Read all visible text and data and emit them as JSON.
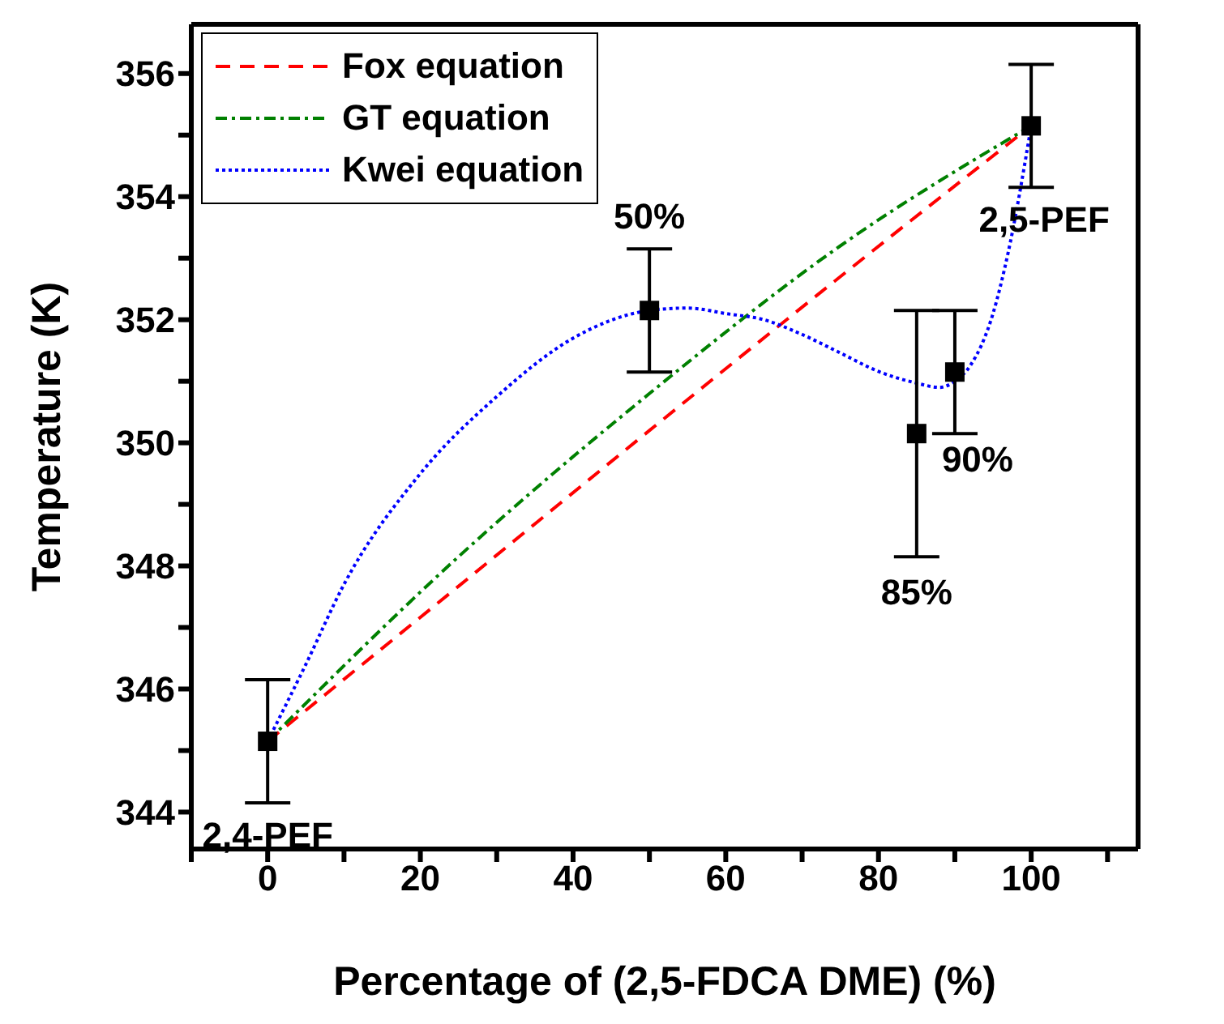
{
  "chart_data": {
    "type": "line",
    "xlabel": "Percentage of (2,5-FDCA DME) (%)",
    "ylabel": "Temperature (K)",
    "xlim": [
      -10,
      114
    ],
    "xticks": [
      {
        "value": -10,
        "label": null
      },
      0,
      {
        "value": 10,
        "label": null
      },
      20,
      {
        "value": 30,
        "label": null
      },
      40,
      {
        "value": 50,
        "label": null
      },
      60,
      {
        "value": 70,
        "label": null
      },
      80,
      {
        "value": 90,
        "label": null
      },
      100,
      {
        "value": 110,
        "label": null
      }
    ],
    "ylim": [
      343.4,
      356.8
    ],
    "yticks": [
      344,
      {
        "value": 345,
        "label": null
      },
      346,
      {
        "value": 347,
        "label": null
      },
      348,
      {
        "value": 349,
        "label": null
      },
      350,
      {
        "value": 351,
        "label": null
      },
      352,
      {
        "value": 353,
        "label": null
      },
      354,
      {
        "value": 355,
        "label": null
      },
      356
    ],
    "legend": "top left",
    "series": [
      {
        "name": "Fox equation",
        "type": "line",
        "color": "#ff0000",
        "line_style": "dashed",
        "marker": "none",
        "x": [
          0,
          25,
          50,
          75,
          100
        ],
        "values": [
          345.15,
          347.67,
          350.2,
          352.7,
          355.15
        ]
      },
      {
        "name": "GT equation",
        "type": "line",
        "color": "#008000",
        "line_style": "dashdot",
        "marker": "none",
        "x": [
          0,
          25,
          50,
          75,
          100
        ],
        "values": [
          345.15,
          348.15,
          350.8,
          353.2,
          355.15
        ]
      },
      {
        "name": "Kwei equation",
        "type": "line",
        "color": "#0000ff",
        "line_style": "dotted",
        "marker": "none",
        "x": [
          0,
          5,
          10,
          20,
          30,
          40,
          50,
          55,
          60,
          65,
          70,
          75,
          80,
          85,
          88,
          90,
          92,
          95,
          97,
          100
        ],
        "values": [
          345.15,
          346.4,
          347.7,
          349.5,
          350.75,
          351.7,
          352.15,
          352.19,
          352.1,
          352.0,
          351.76,
          351.46,
          351.16,
          350.97,
          350.9,
          351.0,
          351.25,
          352.1,
          353.1,
          355.15
        ]
      },
      {
        "type": "scatter",
        "color": "#000000",
        "marker": "square",
        "x": [
          0,
          50,
          85,
          90,
          100
        ],
        "values": [
          345.15,
          352.15,
          350.15,
          351.15,
          355.15
        ],
        "errors": [
          1,
          1,
          2,
          1,
          1
        ]
      }
    ],
    "annotations": [
      {
        "text": "2,4-PEF",
        "x": 0,
        "y": 344.15
      },
      {
        "text": "50%",
        "x": 50,
        "y": 353.15
      },
      {
        "text": "85%",
        "x": 85,
        "y": 348.15
      },
      {
        "text": "90%",
        "x": 90,
        "y": 350.15
      },
      {
        "text": "2,5-PEF",
        "x": 100,
        "y": 354.15
      }
    ]
  }
}
